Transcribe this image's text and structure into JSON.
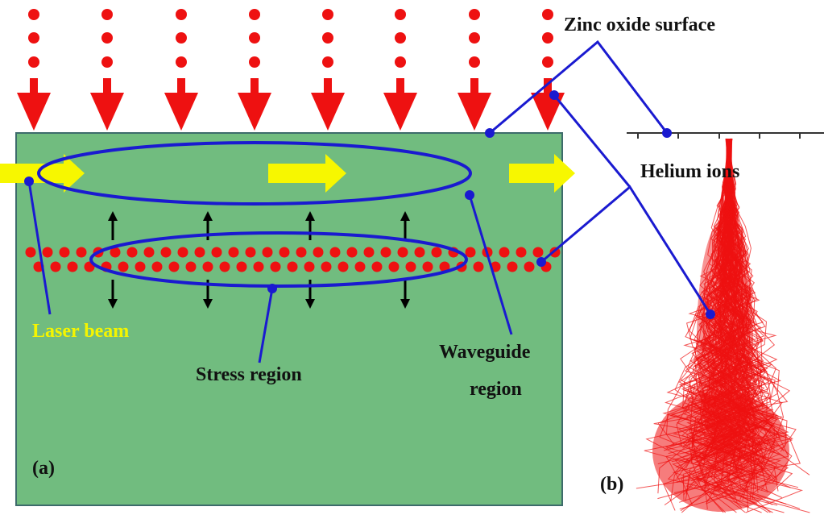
{
  "labels": {
    "zinc_oxide_surface": "Zinc oxide surface",
    "helium_ions": "Helium ions",
    "laser_beam": "Laser beam",
    "stress_region": "Stress region",
    "waveguide_region": [
      "Waveguide",
      "region"
    ],
    "panel_a": "(a)",
    "panel_b": "(b)"
  }
}
